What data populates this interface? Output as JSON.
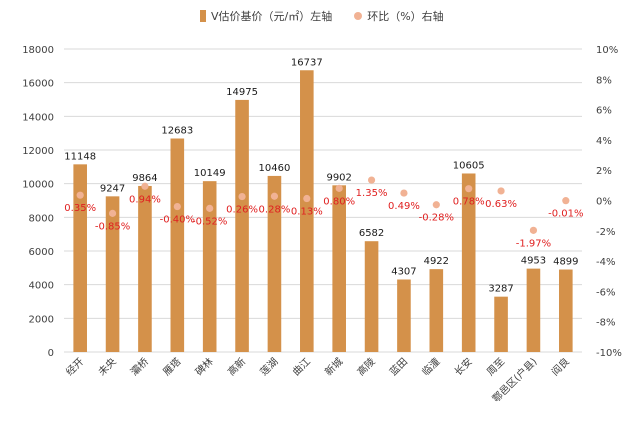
{
  "legend": {
    "bar_label": "V估价基价（元/㎡）左轴",
    "dot_label": "环比（%）右轴"
  },
  "colors": {
    "bar": "#d4914a",
    "dot": "#f1b294",
    "pct_text": "#e02020",
    "grid": "#d9d9d9"
  },
  "chart_data": {
    "type": "bar",
    "title": "",
    "xlabel": "",
    "ylabel": "",
    "categories": [
      "经开",
      "未央",
      "灞桥",
      "雁塔",
      "碑林",
      "高新",
      "莲湖",
      "曲江",
      "新城",
      "高陵",
      "蓝田",
      "临潼",
      "长安",
      "周至",
      "鄠邑区(户县)",
      "阎良"
    ],
    "series": [
      {
        "name": "V估价基价（元/㎡）左轴",
        "type": "bar",
        "axis": "left",
        "values": [
          11148,
          9247,
          9864,
          12683,
          10149,
          14975,
          10460,
          16737,
          9902,
          6582,
          4307,
          4922,
          10605,
          3287,
          4953,
          4899
        ]
      },
      {
        "name": "环比（%）右轴",
        "type": "scatter",
        "axis": "right",
        "values": [
          0.35,
          -0.85,
          0.94,
          -0.4,
          -0.52,
          0.26,
          0.28,
          0.13,
          0.8,
          1.35,
          0.49,
          -0.28,
          0.78,
          0.63,
          -1.97,
          -0.01
        ],
        "labels": [
          "0.35%",
          "-0.85%",
          "0.94%",
          "-0.40%",
          "-0.52%",
          "0.26%",
          "0.28%",
          "0.13%",
          "0.80%",
          "1.35%",
          "0.49%",
          "-0.28%",
          "0.78%",
          "0.63%",
          "-1.97%",
          "-0.01%"
        ]
      }
    ],
    "ylim_left": [
      0,
      18000
    ],
    "yticks_left": [
      "0",
      "2000",
      "4000",
      "6000",
      "8000",
      "10000",
      "12000",
      "14000",
      "16000",
      "18000"
    ],
    "ylim_right": [
      -10,
      10
    ],
    "yticks_right": [
      "-10%",
      "-8%",
      "-6%",
      "-4%",
      "-2%",
      "0%",
      "2%",
      "4%",
      "6%",
      "8%",
      "10%"
    ],
    "grid": true,
    "legend_position": "top"
  }
}
